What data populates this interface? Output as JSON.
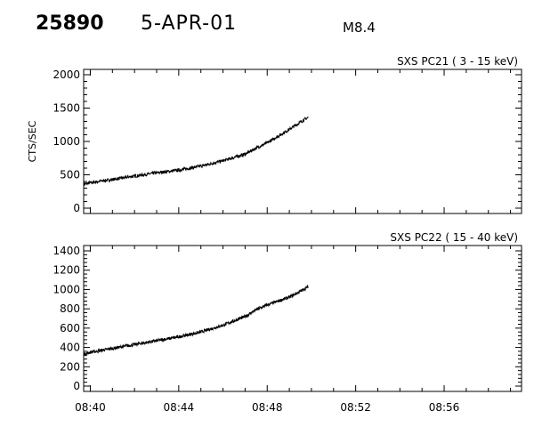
{
  "header": {
    "event_id": "25890",
    "date": "5-APR-01",
    "flare_class": "M8.4"
  },
  "chart_data": [
    {
      "type": "line",
      "title": "SXS PC21 ( 3 - 15 keV)",
      "ylabel": "CTS/SEC",
      "xlabel": "",
      "x_tick_labels": [
        "08:40",
        "08:44",
        "08:48",
        "08:52",
        "08:56"
      ],
      "x_range_minutes": [
        -0.3,
        19.5
      ],
      "y_ticks": [
        0,
        500,
        1000,
        1500,
        2000
      ],
      "ylim": [
        0,
        2000
      ],
      "grid": false,
      "series": [
        {
          "x_minutes": [
            -0.3,
            0,
            1,
            2,
            3,
            4,
            5,
            6,
            7,
            7.5,
            8,
            8.5,
            9,
            9.5,
            9.85
          ],
          "values": [
            360,
            380,
            430,
            480,
            530,
            570,
            630,
            710,
            810,
            900,
            980,
            1080,
            1180,
            1290,
            1360
          ]
        }
      ]
    },
    {
      "type": "line",
      "title": "SXS PC22 ( 15 - 40 keV)",
      "ylabel": "",
      "xlabel": "",
      "x_tick_labels": [
        "08:40",
        "08:44",
        "08:48",
        "08:52",
        "08:56"
      ],
      "x_range_minutes": [
        -0.3,
        19.5
      ],
      "y_ticks": [
        0,
        200,
        400,
        600,
        800,
        1000,
        1200,
        1400
      ],
      "ylim": [
        0,
        1400
      ],
      "grid": false,
      "series": [
        {
          "x_minutes": [
            -0.3,
            0,
            1,
            2,
            3,
            4,
            5,
            6,
            7,
            7.5,
            8,
            8.5,
            9,
            9.5,
            9.85
          ],
          "values": [
            330,
            350,
            390,
            430,
            470,
            510,
            560,
            630,
            720,
            790,
            840,
            880,
            920,
            980,
            1030
          ]
        }
      ]
    }
  ]
}
